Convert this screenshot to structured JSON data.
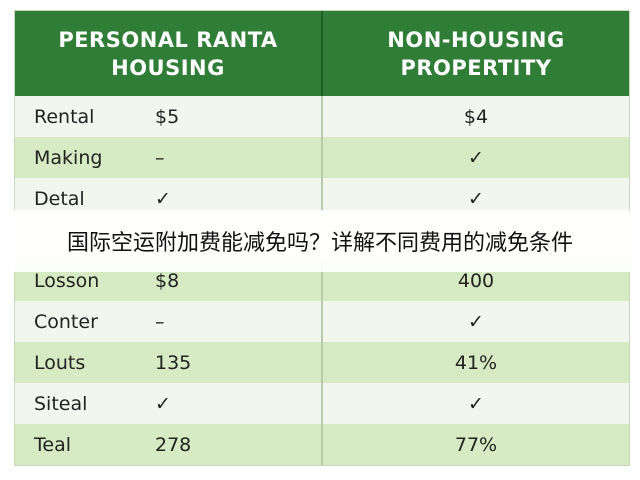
{
  "table": {
    "headers": [
      "PERSONAL RANTA HOUSING",
      "NON-HOUSING PROPERTITY"
    ],
    "rows": [
      [
        "Rental",
        "$5",
        "$4"
      ],
      [
        "Making",
        "–",
        "✓"
      ],
      [
        "Detal",
        "✓",
        "✓"
      ],
      [
        "Losson",
        "$8",
        "400"
      ],
      [
        "Conter",
        "–",
        "✓"
      ],
      [
        "Louts",
        "135",
        "41%"
      ],
      [
        "Siteal",
        "✓",
        "✓"
      ],
      [
        "Teal",
        "278",
        "77%"
      ]
    ]
  },
  "banner": {
    "text": "国际空运附加费能减免吗？详解不同费用的减免条件"
  }
}
